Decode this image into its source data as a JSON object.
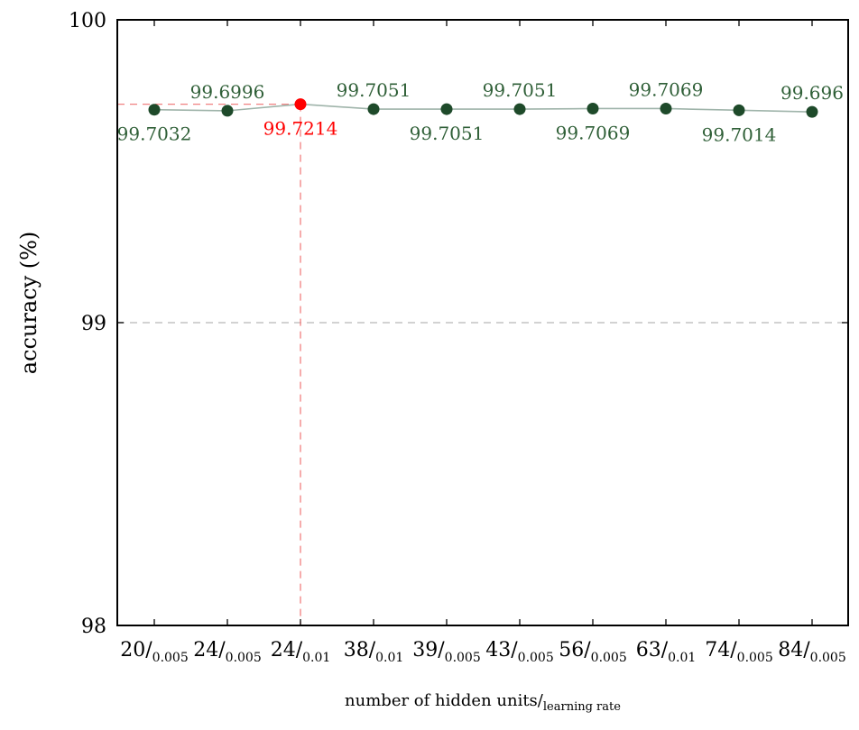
{
  "chart_data": {
    "type": "line",
    "title": "",
    "ylabel": "accuracy (%)",
    "xlabel": {
      "main": "number of hidden units",
      "sub": "learning rate"
    },
    "ylim": [
      98,
      100
    ],
    "yticks": [
      "98",
      "99",
      "100"
    ],
    "grid": "horizontal-dashed",
    "categories": [
      {
        "main": "20",
        "sub": "0.005"
      },
      {
        "main": "24",
        "sub": "0.005"
      },
      {
        "main": "24",
        "sub": "0.01"
      },
      {
        "main": "38",
        "sub": "0.01"
      },
      {
        "main": "39",
        "sub": "0.005"
      },
      {
        "main": "43",
        "sub": "0.005"
      },
      {
        "main": "56",
        "sub": "0.005"
      },
      {
        "main": "63",
        "sub": "0.01"
      },
      {
        "main": "74",
        "sub": "0.005"
      },
      {
        "main": "84",
        "sub": "0.005"
      }
    ],
    "series": [
      {
        "values": [
          99.7032,
          99.6996,
          99.7214,
          99.7051,
          99.7051,
          99.7051,
          99.7069,
          99.7069,
          99.7014,
          99.696
        ],
        "labels": [
          "99.7032",
          "99.6996",
          "99.7214",
          "99.7051",
          "99.7051",
          "99.7051",
          "99.7069",
          "99.7069",
          "99.7014",
          "99.696"
        ],
        "label_positions": [
          "below",
          "above",
          "below",
          "above",
          "below",
          "above",
          "below",
          "above",
          "below",
          "above"
        ]
      }
    ],
    "highlight_index": 2,
    "colors": {
      "line": "#9fb4aa",
      "point": "#1e4a2a",
      "label": "#2f5f37",
      "highlight": "#ff0000",
      "highlight_line": "#f08080",
      "grid": "#b8b8b8"
    }
  }
}
